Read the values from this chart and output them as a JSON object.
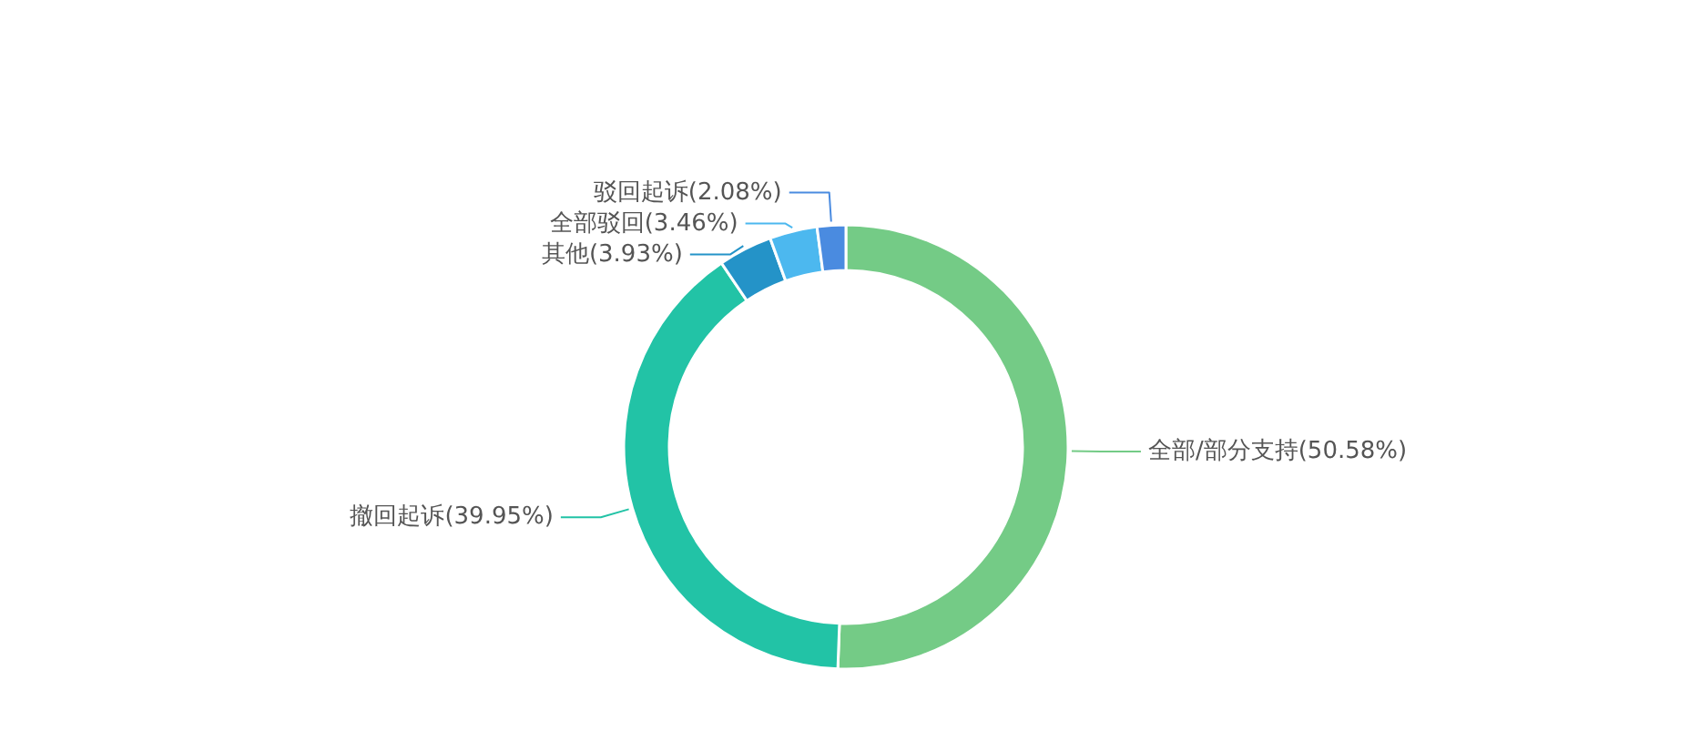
{
  "chart_data": {
    "type": "donut",
    "categories": [
      "全部/部分支持",
      "撤回起诉",
      "其他",
      "全部驳回",
      "驳回起诉"
    ],
    "values": [
      50.58,
      39.95,
      3.93,
      3.46,
      2.08
    ],
    "value_labels": [
      "(50.58%)",
      "(39.95%)",
      "(3.93%)",
      "(3.46%)",
      "(2.08%)"
    ],
    "colors": [
      "#74cb86",
      "#22c3a6",
      "#2493c8",
      "#4cb8ef",
      "#4a8be0"
    ]
  }
}
